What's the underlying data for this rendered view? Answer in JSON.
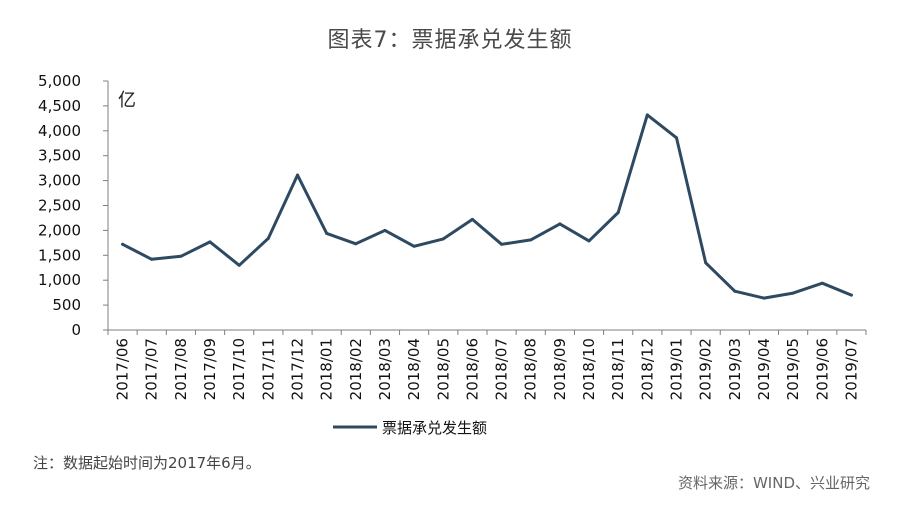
{
  "figure_title": "图表7：票据承兑发生额",
  "note": "注：数据起始时间为2017年6月。",
  "source": "资料来源：WIND、兴业研究",
  "chart_data": {
    "type": "line",
    "title": "图表7：票据承兑发生额",
    "xlabel": "",
    "ylabel": "亿",
    "ylim": [
      0,
      5000
    ],
    "yticks": [
      0,
      500,
      1000,
      1500,
      2000,
      2500,
      3000,
      3500,
      4000,
      4500,
      5000
    ],
    "ytick_labels": [
      "0",
      "500",
      "1,000",
      "1,500",
      "2,000",
      "2,500",
      "3,000",
      "3,500",
      "4,000",
      "4,500",
      "5,000"
    ],
    "categories": [
      "2017/06",
      "2017/07",
      "2017/08",
      "2017/09",
      "2017/10",
      "2017/11",
      "2017/12",
      "2018/01",
      "2018/02",
      "2018/03",
      "2018/04",
      "2018/05",
      "2018/06",
      "2018/07",
      "2018/08",
      "2018/09",
      "2018/10",
      "2018/11",
      "2018/12",
      "2019/01",
      "2019/02",
      "2019/03",
      "2019/04",
      "2019/05",
      "2019/06",
      "2019/07"
    ],
    "series": [
      {
        "name": "票据承兑发生额",
        "color": "#2e4a62",
        "values": [
          1720,
          1420,
          1480,
          1770,
          1300,
          1840,
          3110,
          1940,
          1730,
          2000,
          1680,
          1830,
          2220,
          1720,
          1810,
          2130,
          1790,
          2360,
          4320,
          3860,
          1350,
          780,
          640,
          740,
          940,
          700
        ]
      }
    ],
    "grid": false,
    "legend": "bottom"
  }
}
